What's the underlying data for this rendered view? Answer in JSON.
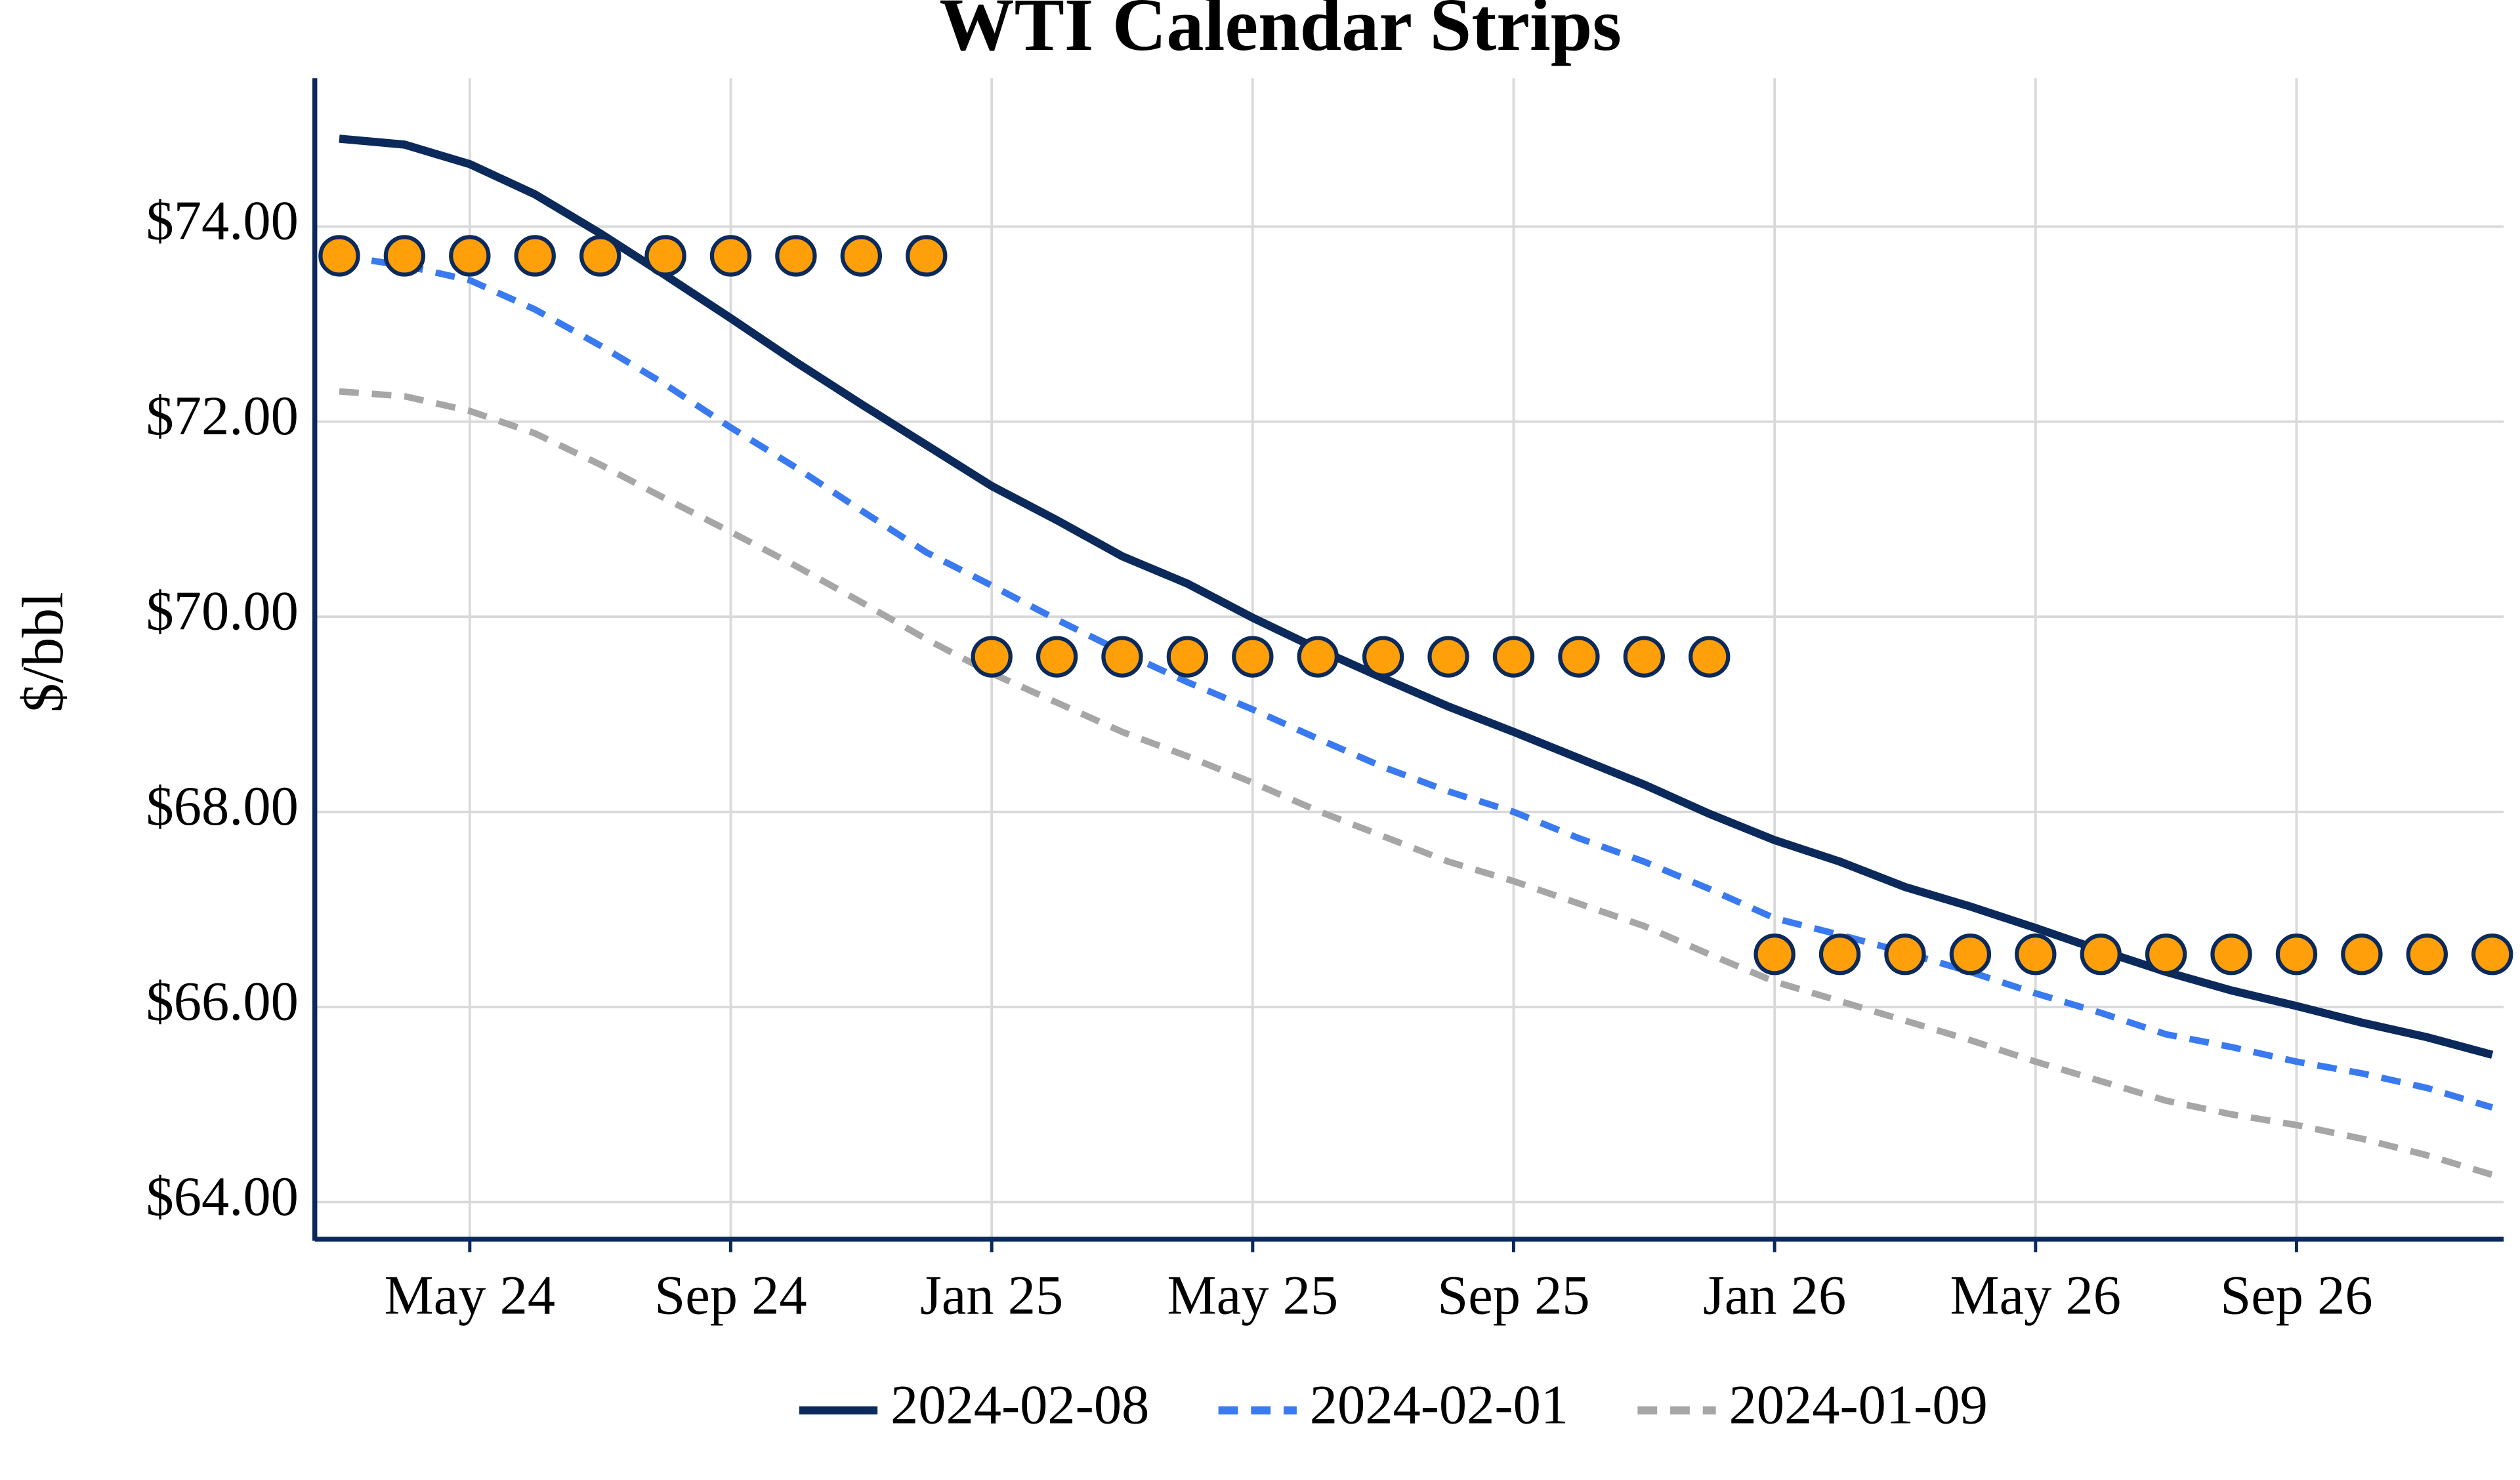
{
  "chart_data": {
    "type": "line",
    "title": "WTI Calendar Strips",
    "y_label": "$/bbl",
    "categories": [
      null,
      null,
      "May 24",
      null,
      null,
      null,
      "Sep 24",
      null,
      null,
      null,
      "Jan 25",
      null,
      null,
      null,
      "May 25",
      null,
      null,
      null,
      "Sep 25",
      null,
      null,
      null,
      "Jan 26",
      null,
      null,
      null,
      "May 26",
      null,
      null,
      null,
      "Sep 26",
      null,
      null,
      null
    ],
    "series": [
      {
        "name": "2024-02-08",
        "color": "#0b2a5b",
        "dash": "solid",
        "values": [
          74.9,
          74.84,
          74.64,
          74.33,
          73.93,
          73.5,
          73.06,
          72.61,
          72.18,
          71.76,
          71.34,
          70.99,
          70.62,
          70.34,
          69.99,
          69.67,
          69.37,
          69.08,
          68.82,
          68.55,
          68.28,
          67.98,
          67.71,
          67.49,
          67.23,
          67.03,
          66.81,
          66.58,
          66.36,
          66.17,
          66.01,
          65.84,
          65.69,
          65.51
        ]
      },
      {
        "name": "2024-02-01",
        "color": "#3a7af0",
        "dash": "dashed",
        "values": [
          73.7,
          73.6,
          73.45,
          73.15,
          72.78,
          72.38,
          71.94,
          71.53,
          71.09,
          70.66,
          70.32,
          69.97,
          69.64,
          69.33,
          69.05,
          68.75,
          68.46,
          68.21,
          68.0,
          67.73,
          67.49,
          67.21,
          66.91,
          66.74,
          66.56,
          66.36,
          66.14,
          65.94,
          65.72,
          65.59,
          65.44,
          65.32,
          65.17,
          64.97
        ]
      },
      {
        "name": "2024-01-09",
        "color": "#a6a6a6",
        "dash": "dashed",
        "values": [
          72.31,
          72.26,
          72.11,
          71.88,
          71.56,
          71.21,
          70.87,
          70.52,
          70.15,
          69.77,
          69.42,
          69.12,
          68.82,
          68.57,
          68.3,
          68.01,
          67.75,
          67.49,
          67.29,
          67.06,
          66.83,
          66.54,
          66.26,
          66.06,
          65.86,
          65.66,
          65.44,
          65.24,
          65.04,
          64.9,
          64.79,
          64.65,
          64.48,
          64.28
        ]
      }
    ],
    "markers": {
      "color": "#ff9f0a",
      "edge_color": "#0b2a5b",
      "values": [
        73.7,
        73.7,
        73.7,
        73.7,
        73.7,
        73.7,
        73.7,
        73.7,
        73.7,
        73.7,
        69.59,
        69.59,
        69.59,
        69.59,
        69.59,
        69.59,
        69.59,
        69.59,
        69.59,
        69.59,
        69.59,
        69.59,
        66.54,
        66.54,
        66.54,
        66.54,
        66.54,
        66.54,
        66.54,
        66.54,
        66.54,
        66.54,
        66.54,
        66.54
      ]
    },
    "ylim": [
      63.62,
      75.52
    ],
    "yticks": [
      {
        "value": 64,
        "label": "$64.00"
      },
      {
        "value": 66,
        "label": "$66.00"
      },
      {
        "value": 68,
        "label": "$68.00"
      },
      {
        "value": 70,
        "label": "$70.00"
      },
      {
        "value": 72,
        "label": "$72.00"
      },
      {
        "value": 74,
        "label": "$74.00"
      }
    ],
    "grid": true,
    "legend": "bottom"
  }
}
